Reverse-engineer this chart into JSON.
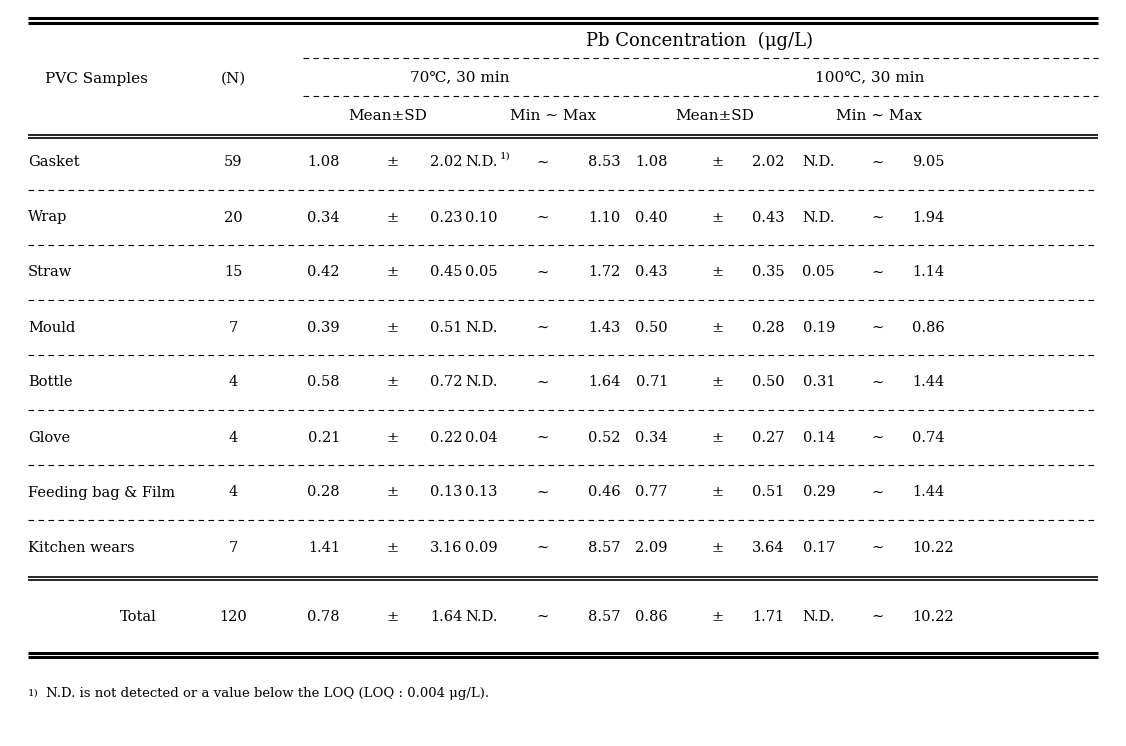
{
  "rows": [
    [
      "Gasket",
      "59",
      "1.08",
      "±",
      "2.02",
      "N.D.",
      "1)",
      "∼",
      "8.53",
      "1.08",
      "±",
      "2.02",
      "N.D.",
      "∼",
      "9.05"
    ],
    [
      "Wrap",
      "20",
      "0.34",
      "±",
      "0.23",
      "0.10",
      "",
      "∼",
      "1.10",
      "0.40",
      "±",
      "0.43",
      "N.D.",
      "∼",
      "1.94"
    ],
    [
      "Straw",
      "15",
      "0.42",
      "±",
      "0.45",
      "0.05",
      "",
      "∼",
      "1.72",
      "0.43",
      "±",
      "0.35",
      "0.05",
      "∼",
      "1.14"
    ],
    [
      "Mould",
      "7",
      "0.39",
      "±",
      "0.51",
      "N.D.",
      "",
      "∼",
      "1.43",
      "0.50",
      "±",
      "0.28",
      "0.19",
      "∼",
      "0.86"
    ],
    [
      "Bottle",
      "4",
      "0.58",
      "±",
      "0.72",
      "N.D.",
      "",
      "∼",
      "1.64",
      "0.71",
      "±",
      "0.50",
      "0.31",
      "∼",
      "1.44"
    ],
    [
      "Glove",
      "4",
      "0.21",
      "±",
      "0.22",
      "0.04",
      "",
      "∼",
      "0.52",
      "0.34",
      "±",
      "0.27",
      "0.14",
      "∼",
      "0.74"
    ],
    [
      "Feeding bag & Film",
      "4",
      "0.28",
      "±",
      "0.13",
      "0.13",
      "",
      "∼",
      "0.46",
      "0.77",
      "±",
      "0.51",
      "0.29",
      "∼",
      "1.44"
    ],
    [
      "Kitchen wears",
      "7",
      "1.41",
      "±",
      "3.16",
      "0.09",
      "",
      "∼",
      "8.57",
      "2.09",
      "±",
      "3.64",
      "0.17",
      "∼",
      "10.22"
    ]
  ],
  "total": [
    "Total",
    "120",
    "0.78",
    "±",
    "1.64",
    "N.D.",
    "",
    "∼",
    "8.57",
    "0.86",
    "±",
    "1.71",
    "N.D.",
    "∼",
    "10.22"
  ],
  "footnote": "N.D. is not detected or a value below the LOQ (LOQ : 0.004 μg/L).",
  "bg_color": "#ffffff",
  "text_color": "#000000",
  "fs_title": 13,
  "fs_header": 11,
  "fs_data": 10.5,
  "fs_footnote": 9.5,
  "lw_thick": 2.2,
  "lw_thin": 1.2,
  "lw_dash": 0.8
}
